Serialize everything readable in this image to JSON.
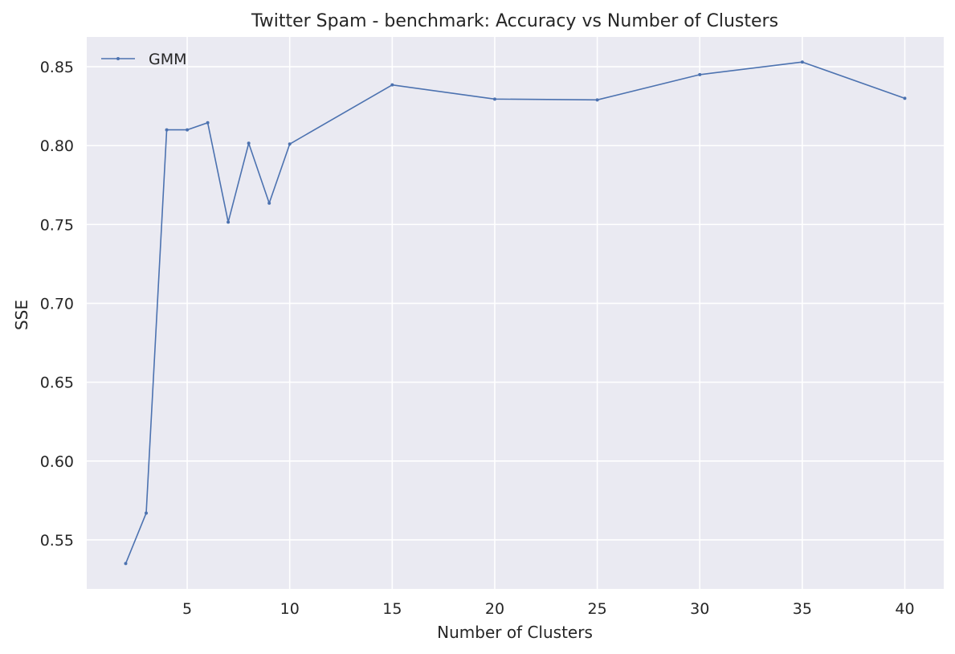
{
  "chart_data": {
    "type": "line",
    "title": "Twitter Spam - benchmark: Accuracy vs Number of Clusters",
    "xlabel": "Number of Clusters",
    "ylabel": "SSE",
    "xlim": [
      0.1,
      41.9
    ],
    "ylim": [
      0.5189,
      0.8689
    ],
    "xticks": [
      5,
      10,
      15,
      20,
      25,
      30,
      35,
      40
    ],
    "yticks": [
      0.55,
      0.6,
      0.65,
      0.7,
      0.75,
      0.8,
      0.85
    ],
    "ytick_labels": [
      "0.55",
      "0.60",
      "0.65",
      "0.70",
      "0.75",
      "0.80",
      "0.85"
    ],
    "grid": true,
    "legend_position": "top-left",
    "style": {
      "background": "#eaeaf2",
      "grid_color": "#ffffff",
      "line_color": "#4c72b0",
      "text_color": "#262626"
    },
    "x": [
      2,
      3,
      4,
      5,
      6,
      7,
      8,
      9,
      10,
      15,
      20,
      25,
      30,
      35,
      40
    ],
    "series": [
      {
        "name": "GMM",
        "values": [
          0.535,
          0.567,
          0.81,
          0.81,
          0.8145,
          0.7515,
          0.8015,
          0.7635,
          0.801,
          0.8385,
          0.8295,
          0.829,
          0.845,
          0.853,
          0.83
        ]
      }
    ]
  }
}
